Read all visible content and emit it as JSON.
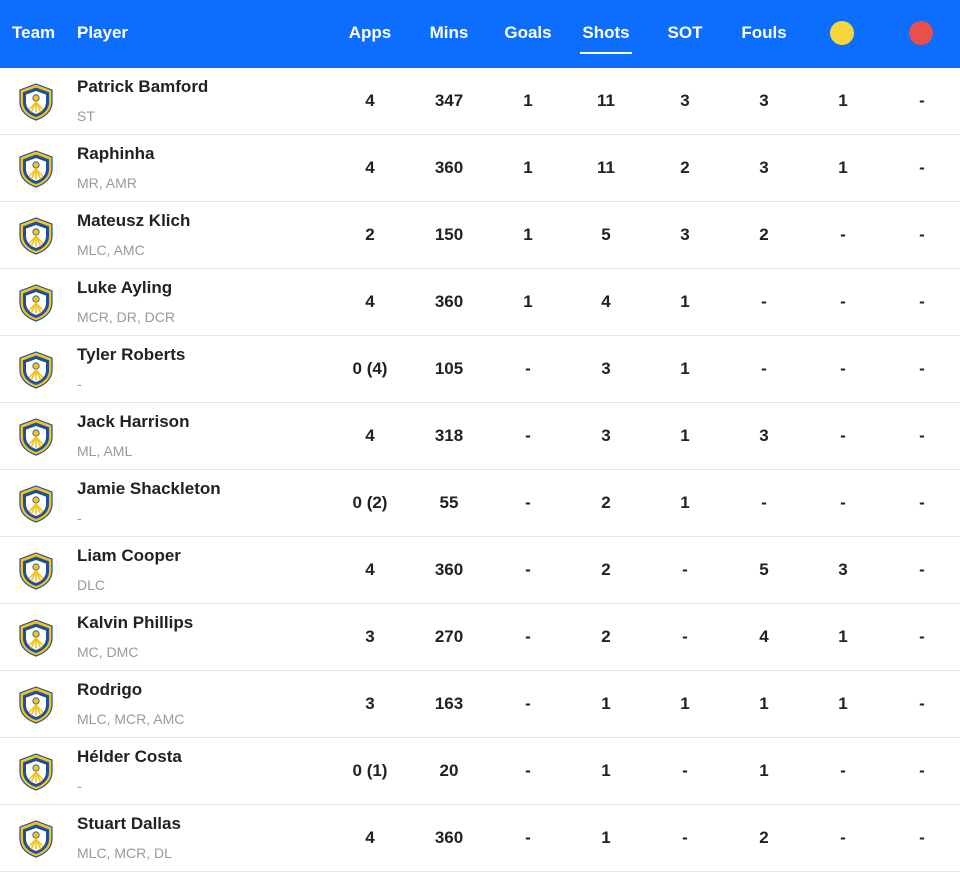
{
  "header": {
    "team": "Team",
    "player": "Player",
    "apps": "Apps",
    "mins": "Mins",
    "goals": "Goals",
    "shots": "Shots",
    "sot": "SOT",
    "fouls": "Fouls",
    "yellow_color": "#f5d63d",
    "red_color": "#e8514a"
  },
  "colors": {
    "header_bg": "#0d6efd",
    "badge_yellow": "#f4c21a",
    "badge_blue": "#1d4f9c"
  },
  "players": [
    {
      "name": "Patrick Bamford",
      "pos": "ST",
      "apps": "4",
      "mins": "347",
      "goals": "1",
      "shots": "11",
      "sot": "3",
      "fouls": "3",
      "yellow": "1",
      "red": "-"
    },
    {
      "name": "Raphinha",
      "pos": "MR, AMR",
      "apps": "4",
      "mins": "360",
      "goals": "1",
      "shots": "11",
      "sot": "2",
      "fouls": "3",
      "yellow": "1",
      "red": "-"
    },
    {
      "name": "Mateusz Klich",
      "pos": "MLC, AMC",
      "apps": "2",
      "mins": "150",
      "goals": "1",
      "shots": "5",
      "sot": "3",
      "fouls": "2",
      "yellow": "-",
      "red": "-"
    },
    {
      "name": "Luke Ayling",
      "pos": "MCR, DR, DCR",
      "apps": "4",
      "mins": "360",
      "goals": "1",
      "shots": "4",
      "sot": "1",
      "fouls": "-",
      "yellow": "-",
      "red": "-"
    },
    {
      "name": "Tyler Roberts",
      "pos": "-",
      "apps": "0 (4)",
      "mins": "105",
      "goals": "-",
      "shots": "3",
      "sot": "1",
      "fouls": "-",
      "yellow": "-",
      "red": "-"
    },
    {
      "name": "Jack Harrison",
      "pos": "ML, AML",
      "apps": "4",
      "mins": "318",
      "goals": "-",
      "shots": "3",
      "sot": "1",
      "fouls": "3",
      "yellow": "-",
      "red": "-"
    },
    {
      "name": "Jamie Shackleton",
      "pos": "-",
      "apps": "0 (2)",
      "mins": "55",
      "goals": "-",
      "shots": "2",
      "sot": "1",
      "fouls": "-",
      "yellow": "-",
      "red": "-"
    },
    {
      "name": "Liam Cooper",
      "pos": "DLC",
      "apps": "4",
      "mins": "360",
      "goals": "-",
      "shots": "2",
      "sot": "-",
      "fouls": "5",
      "yellow": "3",
      "red": "-"
    },
    {
      "name": "Kalvin Phillips",
      "pos": "MC, DMC",
      "apps": "3",
      "mins": "270",
      "goals": "-",
      "shots": "2",
      "sot": "-",
      "fouls": "4",
      "yellow": "1",
      "red": "-"
    },
    {
      "name": "Rodrigo",
      "pos": "MLC, MCR, AMC",
      "apps": "3",
      "mins": "163",
      "goals": "-",
      "shots": "1",
      "sot": "1",
      "fouls": "1",
      "yellow": "1",
      "red": "-"
    },
    {
      "name": "Hélder Costa",
      "pos": "-",
      "apps": "0 (1)",
      "mins": "20",
      "goals": "-",
      "shots": "1",
      "sot": "-",
      "fouls": "1",
      "yellow": "-",
      "red": "-"
    },
    {
      "name": "Stuart Dallas",
      "pos": "MLC, MCR, DL",
      "apps": "4",
      "mins": "360",
      "goals": "-",
      "shots": "1",
      "sot": "-",
      "fouls": "2",
      "yellow": "-",
      "red": "-"
    }
  ]
}
